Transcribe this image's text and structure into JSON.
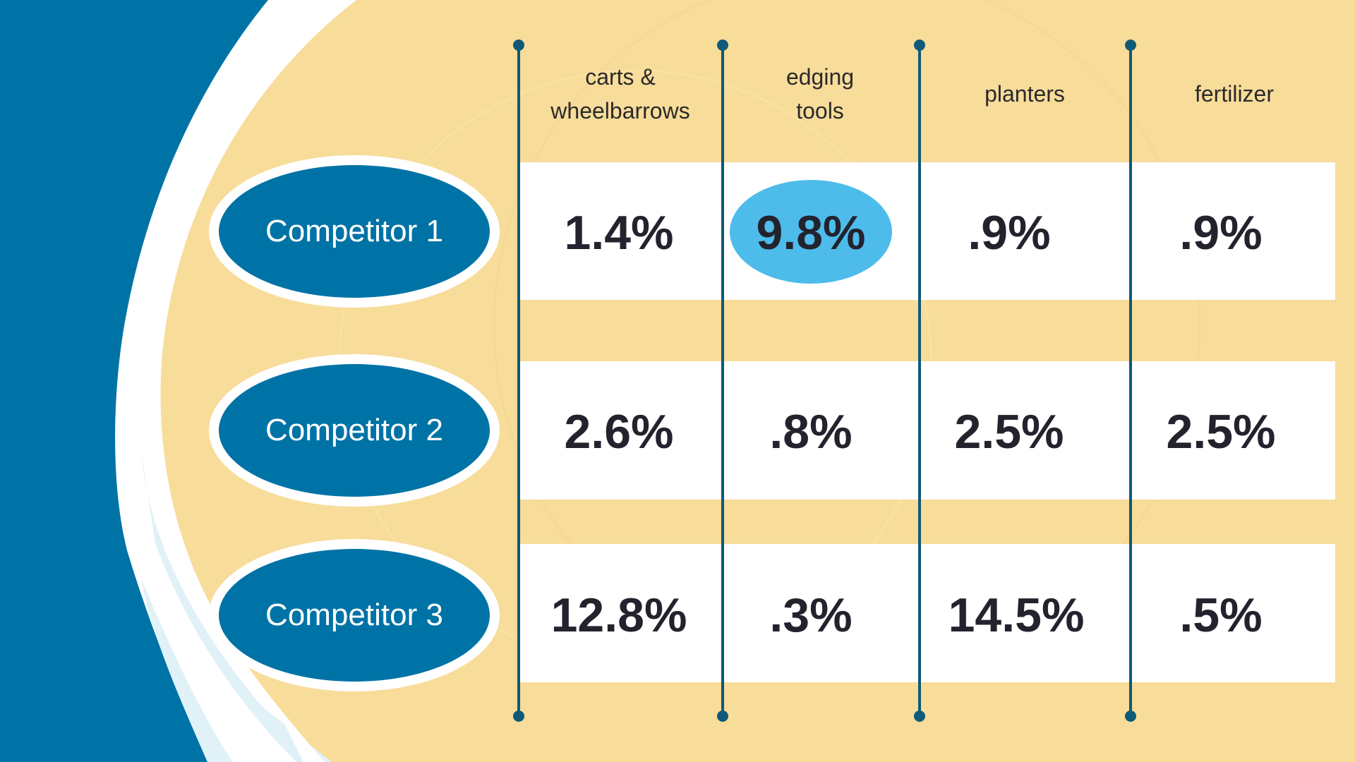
{
  "columns": [
    "carts & wheelbarrows",
    "edging tools",
    "planters",
    "fertilizer"
  ],
  "rows": [
    {
      "label": "Competitor 1",
      "values": [
        "1.4%",
        "9.8%",
        ".9%",
        ".9%"
      ]
    },
    {
      "label": "Competitor 2",
      "values": [
        "2.6%",
        ".8%",
        "2.5%",
        "2.5%"
      ]
    },
    {
      "label": "Competitor 3",
      "values": [
        "12.8%",
        ".3%",
        "14.5%",
        ".5%"
      ]
    }
  ],
  "highlighted_cell": {
    "row": 0,
    "column": 1
  },
  "colors": {
    "primary_blue": "#0073a6",
    "highlight_blue": "#4dbcea",
    "background_yellow": "#f8dc9a",
    "line": "#0e5a78"
  }
}
